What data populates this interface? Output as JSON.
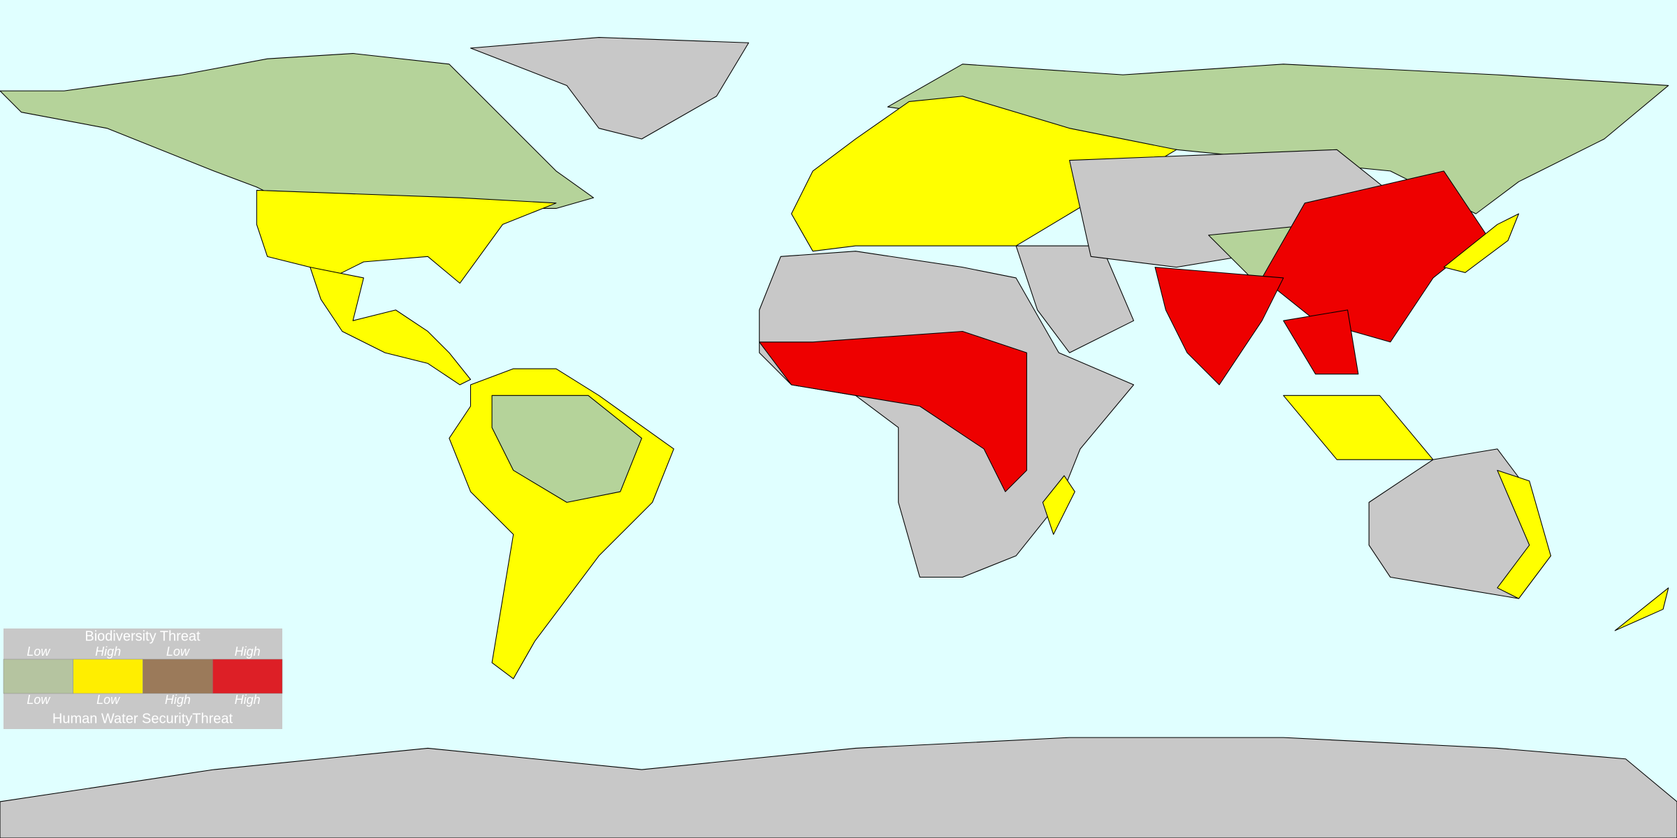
{
  "legend": {
    "title_top": "Biodiversity Threat",
    "top_labels": [
      "Low",
      "High",
      "Low",
      "High"
    ],
    "bottom_labels": [
      "Low",
      "Low",
      "High",
      "High"
    ],
    "title_bottom": "Human Water SecurityThreat",
    "colors": [
      "#b5c4a0",
      "#ffee00",
      "#9b7a5a",
      "#dd1f26"
    ]
  }
}
